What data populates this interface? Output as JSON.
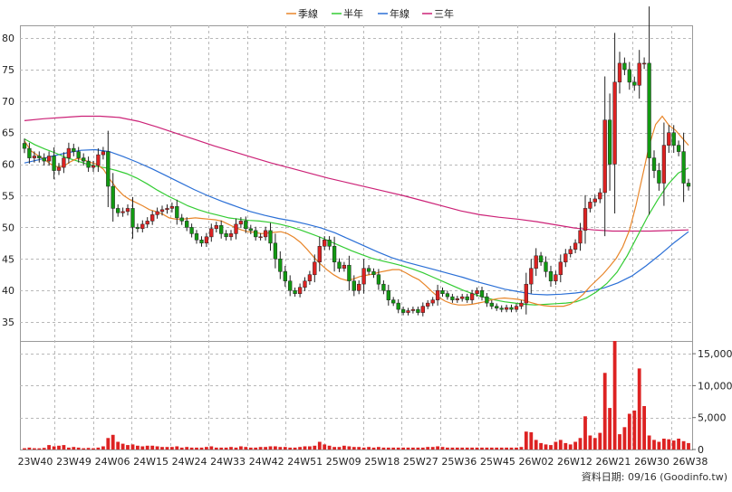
{
  "chart_data": {
    "type": "candlestick",
    "legend": [
      {
        "name": "季線",
        "color": "#e8862a"
      },
      {
        "name": "半年",
        "color": "#33cc33"
      },
      {
        "name": "年線",
        "color": "#2a6fd6"
      },
      {
        "name": "三年",
        "color": "#cc2277"
      }
    ],
    "colors": {
      "up": "#dd2222",
      "down": "#119911",
      "volume": "#dd2222"
    },
    "price_axis": {
      "min": 32,
      "max": 82,
      "ticks": [
        35,
        40,
        45,
        50,
        55,
        60,
        65,
        70,
        75,
        80
      ],
      "labels": [
        "35",
        "40",
        "45",
        "50",
        "55",
        "60",
        "65",
        "70",
        "75",
        "80"
      ]
    },
    "volume_axis": {
      "min": 0,
      "max": 17000,
      "ticks": [
        0,
        5000,
        10000,
        15000
      ],
      "labels": [
        "0",
        "5,000",
        "10,000",
        "15,000"
      ]
    },
    "x_labels": [
      "23W40",
      "23W49",
      "24W06",
      "24W15",
      "24W24",
      "24W33",
      "24W42",
      "24W51",
      "25W09",
      "25W18",
      "25W27",
      "25W36",
      "25W45",
      "26W02",
      "26W12",
      "26W21",
      "26W30",
      "26W38"
    ],
    "footer": "資料日期: 09/16  (Goodinfo.tw)",
    "closes": [
      62.5,
      61,
      61.3,
      61,
      60.5,
      61.3,
      59,
      59.5,
      61,
      62.5,
      62,
      61,
      60.5,
      59.5,
      59.8,
      61.5,
      62,
      56.5,
      53,
      52.3,
      52.5,
      53,
      50,
      49.8,
      50.5,
      51,
      52,
      52.5,
      52.8,
      53,
      53.3,
      51.5,
      51,
      50,
      49,
      48,
      47.5,
      48.5,
      49.8,
      50.3,
      49,
      48.5,
      49,
      50.5,
      51,
      49.8,
      49.5,
      48.5,
      48.5,
      49.5,
      47.5,
      45,
      43,
      41.5,
      40,
      39.5,
      40.5,
      41.5,
      42.5,
      44.5,
      47,
      48,
      47,
      44.5,
      43.5,
      44,
      41.5,
      40,
      41,
      43.5,
      43,
      42.5,
      41,
      40,
      38.5,
      38,
      37,
      36.5,
      36.8,
      37,
      36.5,
      37.5,
      38,
      38.5,
      40,
      39.5,
      39,
      38.5,
      38.7,
      39,
      38.5,
      39.5,
      40,
      39,
      38,
      37.5,
      37.2,
      37,
      37.3,
      37,
      37.5,
      38,
      41,
      43.5,
      45.5,
      44.5,
      43,
      41.5,
      42.5,
      44.5,
      45.8,
      46.5,
      47.5,
      49.5,
      53,
      54,
      54.5,
      55.5,
      67,
      60,
      73,
      76,
      75,
      73,
      72.5,
      76,
      76,
      61,
      59,
      57,
      63,
      65,
      63,
      62,
      57,
      56.5
    ],
    "volumes": [
      200,
      300,
      200,
      180,
      250,
      700,
      500,
      600,
      700,
      300,
      400,
      300,
      200,
      250,
      200,
      300,
      500,
      1800,
      2300,
      1200,
      900,
      700,
      800,
      600,
      500,
      600,
      600,
      500,
      400,
      400,
      400,
      500,
      300,
      400,
      300,
      300,
      300,
      400,
      500,
      300,
      300,
      300,
      400,
      300,
      500,
      400,
      300,
      300,
      400,
      400,
      500,
      500,
      400,
      400,
      300,
      300,
      400,
      500,
      500,
      600,
      1200,
      800,
      600,
      400,
      400,
      600,
      500,
      400,
      400,
      300,
      400,
      300,
      400,
      300,
      300,
      300,
      300,
      300,
      300,
      300,
      300,
      300,
      400,
      400,
      500,
      400,
      300,
      300,
      300,
      300,
      300,
      300,
      300,
      300,
      300,
      300,
      300,
      300,
      300,
      300,
      300,
      400,
      2800,
      2700,
      1500,
      1000,
      800,
      700,
      1200,
      1500,
      1000,
      800,
      1200,
      1800,
      5200,
      2200,
      1800,
      2600,
      12000,
      6500,
      17000,
      2400,
      3500,
      5600,
      6100,
      12700,
      6800,
      2200,
      1500,
      1200,
      1700,
      1600,
      1400,
      1700,
      1300,
      1000
    ],
    "ma_quarter": [
      63.7,
      62.1,
      61.4,
      60.8,
      60.0,
      59.6,
      59.7,
      60.4,
      60.9,
      60.7,
      60.3,
      60.0,
      59.2,
      57.6,
      56.2,
      55.1,
      54.4,
      53.9,
      53.4,
      52.8,
      52.5,
      52.1,
      51.5,
      51.3,
      51.3,
      51.4,
      51.5,
      51.4,
      51.3,
      51.2,
      51.0,
      50.5,
      50.0,
      49.6,
      49.3,
      49.2,
      49.0,
      49.1,
      49.2,
      49.3,
      49.0,
      48.4,
      47.6,
      46.5,
      45.3,
      44.2,
      43.3,
      42.5,
      41.9,
      41.6,
      41.8,
      42.2,
      42.4,
      42.6,
      42.9,
      43.1,
      43.3,
      43.3,
      42.8,
      42.2,
      41.7,
      40.8,
      39.8,
      38.9,
      38.3,
      37.9,
      37.7,
      37.7,
      37.8,
      38.0,
      38.2,
      38.5,
      38.7,
      38.8,
      38.7,
      38.6,
      38.4,
      38.1,
      37.8,
      37.6,
      37.5,
      37.5,
      37.5,
      37.8,
      38.5,
      39.4,
      40.6,
      41.6,
      42.6,
      43.8,
      45.1,
      46.9,
      49.5,
      53.4,
      58.1,
      62.9,
      66.3,
      67.6,
      66.2,
      65.4,
      64.2,
      63.0
    ],
    "ma_half": [
      64.0,
      63.1,
      62.4,
      61.8,
      61.1,
      60.6,
      60.1,
      59.7,
      59.4,
      59.0,
      58.5,
      57.8,
      56.9,
      55.9,
      55.0,
      54.2,
      53.4,
      52.8,
      52.3,
      51.9,
      51.5,
      51.3,
      51.1,
      51.0,
      50.8,
      50.5,
      50.1,
      49.6,
      49.0,
      48.4,
      47.7,
      47.0,
      46.3,
      45.7,
      45.1,
      44.7,
      44.3,
      43.9,
      43.4,
      42.8,
      42.1,
      41.4,
      40.7,
      40.0,
      39.4,
      38.9,
      38.5,
      38.2,
      38.0,
      37.8,
      37.7,
      37.8,
      37.9,
      38.0,
      38.2,
      38.8,
      39.8,
      41.1,
      42.9,
      45.5,
      48.6,
      51.7,
      54.4,
      56.8,
      58.6,
      59.4
    ],
    "ma_year": [
      60.2,
      60.7,
      61.3,
      61.8,
      62.2,
      62.3,
      62.0,
      61.2,
      60.3,
      59.3,
      58.2,
      57.1,
      56.0,
      55.0,
      54.1,
      53.3,
      52.5,
      51.9,
      51.4,
      51.0,
      50.5,
      49.9,
      49.1,
      48.1,
      47.1,
      46.1,
      45.2,
      44.5,
      43.9,
      43.3,
      42.7,
      42.1,
      41.4,
      40.8,
      40.2,
      39.8,
      39.4,
      39.3,
      39.4,
      39.6,
      39.9,
      40.4,
      41.2,
      42.3,
      43.9,
      45.7,
      47.6,
      49.3
    ],
    "ma_three_year": [
      66.9,
      67.2,
      67.4,
      67.6,
      67.6,
      67.4,
      66.8,
      65.9,
      64.9,
      63.9,
      62.9,
      62.0,
      61.1,
      60.2,
      59.4,
      58.6,
      57.8,
      57.1,
      56.4,
      55.7,
      55.0,
      54.2,
      53.4,
      52.6,
      52.0,
      51.6,
      51.3,
      50.9,
      50.4,
      49.9,
      49.6,
      49.4,
      49.4,
      49.4,
      49.5,
      49.6
    ]
  }
}
